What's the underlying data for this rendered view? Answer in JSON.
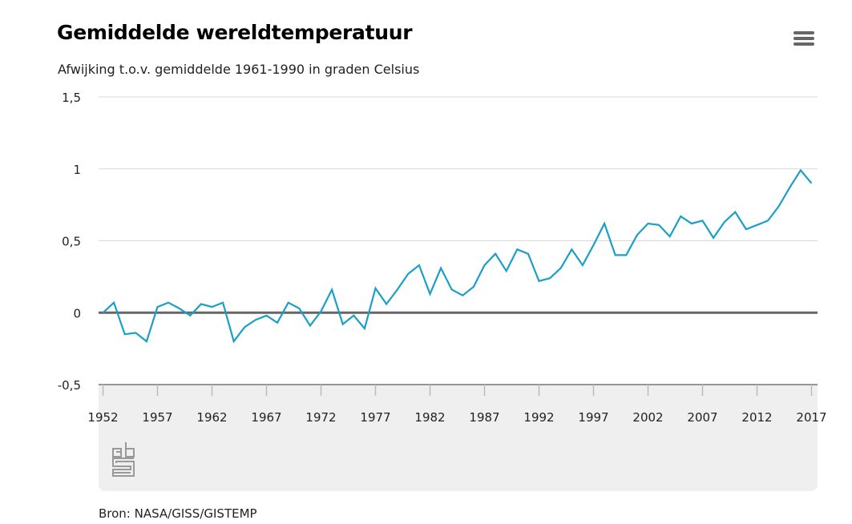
{
  "header": {
    "title": "Gemiddelde wereldtemperatuur",
    "subtitle": "Afwijking t.o.v. gemiddelde 1961-1990 in graden Celsius",
    "menu_icon": "hamburger-menu-icon"
  },
  "footer": {
    "source": "Bron: NASA/GISS/GISTEMP",
    "logo": "cbs"
  },
  "chart_data": {
    "type": "line",
    "title": "Gemiddelde wereldtemperatuur",
    "subtitle": "Afwijking t.o.v. gemiddelde 1961-1990 in graden Celsius",
    "xlim": [
      1952,
      2017
    ],
    "ylim": [
      -0.5,
      1.5
    ],
    "yticks": [
      -0.5,
      0,
      0.5,
      1,
      1.5
    ],
    "ytick_labels": [
      "-0,5",
      "0",
      "0,5",
      "1",
      "1,5"
    ],
    "xticks": [
      1952,
      1957,
      1962,
      1967,
      1972,
      1977,
      1982,
      1987,
      1992,
      1997,
      2002,
      2007,
      2012,
      2017
    ],
    "xtick_labels": [
      "1952",
      "1957",
      "1962",
      "1967",
      "1972",
      "1977",
      "1982",
      "1987",
      "1992",
      "1997",
      "2002",
      "2007",
      "2012",
      "2017"
    ],
    "grid": true,
    "line_color": "#1a9fc6",
    "zero_line_color": "#666666",
    "x": [
      1952,
      1953,
      1954,
      1955,
      1956,
      1957,
      1958,
      1959,
      1960,
      1961,
      1962,
      1963,
      1964,
      1965,
      1966,
      1967,
      1968,
      1969,
      1970,
      1971,
      1972,
      1973,
      1974,
      1975,
      1976,
      1977,
      1978,
      1979,
      1980,
      1981,
      1982,
      1983,
      1984,
      1985,
      1986,
      1987,
      1988,
      1989,
      1990,
      1991,
      1992,
      1993,
      1994,
      1995,
      1996,
      1997,
      1998,
      1999,
      2000,
      2001,
      2002,
      2003,
      2004,
      2005,
      2006,
      2007,
      2008,
      2009,
      2010,
      2011,
      2012,
      2013,
      2014,
      2015,
      2016,
      2017
    ],
    "values": [
      0.0,
      0.07,
      -0.15,
      -0.14,
      -0.2,
      0.04,
      0.07,
      0.03,
      -0.02,
      0.06,
      0.04,
      0.07,
      -0.2,
      -0.1,
      -0.05,
      -0.02,
      -0.07,
      0.07,
      0.03,
      -0.09,
      0.01,
      0.16,
      -0.08,
      -0.02,
      -0.11,
      0.17,
      0.06,
      0.16,
      0.27,
      0.33,
      0.13,
      0.31,
      0.16,
      0.12,
      0.18,
      0.33,
      0.41,
      0.29,
      0.44,
      0.41,
      0.22,
      0.24,
      0.31,
      0.44,
      0.33,
      0.47,
      0.62,
      0.4,
      0.4,
      0.54,
      0.62,
      0.61,
      0.53,
      0.67,
      0.62,
      0.64,
      0.52,
      0.63,
      0.7,
      0.58,
      0.61,
      0.64,
      0.74,
      0.87,
      0.99,
      0.9
    ]
  }
}
